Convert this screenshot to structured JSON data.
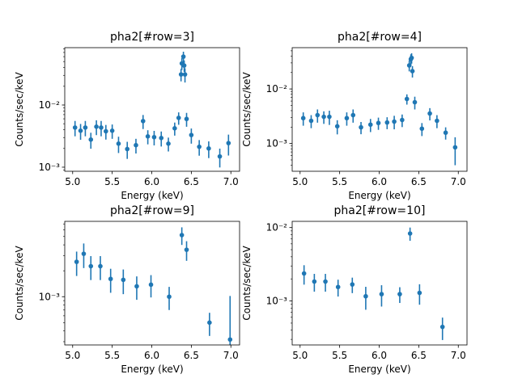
{
  "chart_data": [
    {
      "type": "scatter",
      "title": "pha2[#row=3]",
      "xlabel": "Energy (keV)",
      "ylabel": "Counts/sec/keV",
      "yscale": "log",
      "xlim": [
        4.9,
        7.11
      ],
      "ylim": [
        0.00086,
        0.0836
      ],
      "color": "#1f77b4",
      "xticks": [
        "5.0",
        "5.5",
        "6.0",
        "6.5",
        "7.0"
      ],
      "yticks": [
        {
          "value": 0.01,
          "label": "10⁻²"
        },
        {
          "value": 0.001,
          "label": "10⁻³"
        }
      ],
      "x": [
        5.03,
        5.1,
        5.16,
        5.23,
        5.3,
        5.36,
        5.42,
        5.5,
        5.58,
        5.69,
        5.8,
        5.89,
        5.95,
        6.03,
        6.12,
        6.21,
        6.29,
        6.34,
        6.37,
        6.38,
        6.4,
        6.41,
        6.42,
        6.44,
        6.5,
        6.6,
        6.72,
        6.86,
        6.97
      ],
      "y": [
        0.00434,
        0.00386,
        0.00434,
        0.00278,
        0.00448,
        0.00434,
        0.00378,
        0.00386,
        0.00239,
        0.00196,
        0.00226,
        0.00551,
        0.00313,
        0.00304,
        0.00295,
        0.00239,
        0.00422,
        0.00621,
        0.031,
        0.0466,
        0.06,
        0.0431,
        0.031,
        0.00597,
        0.00329,
        0.00213,
        0.002,
        0.00149,
        0.00244
      ],
      "yerr": [
        0.0012,
        0.0011,
        0.0012,
        0.0008,
        0.0012,
        0.0012,
        0.001,
        0.001,
        0.0007,
        0.0006,
        0.0006,
        0.0014,
        0.0008,
        0.0008,
        0.0008,
        0.0006,
        0.001,
        0.0014,
        0.007,
        0.01,
        0.012,
        0.009,
        0.008,
        0.0015,
        0.0009,
        0.0006,
        0.0006,
        0.0005,
        0.0009
      ]
    },
    {
      "type": "scatter",
      "title": "pha2[#row=4]",
      "xlabel": "Energy (keV)",
      "ylabel": "Counts/sec/keV",
      "yscale": "log",
      "xlim": [
        4.9,
        7.11
      ],
      "ylim": [
        0.00031,
        0.0571
      ],
      "color": "#1f77b4",
      "xticks": [
        "5.0",
        "5.5",
        "6.0",
        "6.5",
        "7.0"
      ],
      "yticks": [
        {
          "value": 0.01,
          "label": "10⁻²"
        },
        {
          "value": 0.001,
          "label": "10⁻³"
        }
      ],
      "x": [
        5.04,
        5.14,
        5.22,
        5.3,
        5.37,
        5.47,
        5.59,
        5.67,
        5.77,
        5.89,
        5.99,
        6.1,
        6.19,
        6.29,
        6.35,
        6.38,
        6.4,
        6.41,
        6.42,
        6.45,
        6.54,
        6.64,
        6.73,
        6.84,
        6.96
      ],
      "y": [
        0.00292,
        0.00261,
        0.00331,
        0.00309,
        0.00309,
        0.00207,
        0.00292,
        0.00331,
        0.00198,
        0.00222,
        0.00238,
        0.00243,
        0.00252,
        0.0027,
        0.00656,
        0.027,
        0.0351,
        0.0371,
        0.0212,
        0.00571,
        0.00187,
        0.00355,
        0.00261,
        0.00158,
        0.00085
      ],
      "yerr": [
        0.0008,
        0.0007,
        0.0009,
        0.0008,
        0.0009,
        0.0006,
        0.0008,
        0.0009,
        0.0005,
        0.0006,
        0.0006,
        0.0006,
        0.0007,
        0.0007,
        0.0014,
        0.006,
        0.008,
        0.008,
        0.005,
        0.0015,
        0.0005,
        0.0009,
        0.0007,
        0.0004,
        0.00045
      ]
    },
    {
      "type": "scatter",
      "title": "pha2[#row=9]",
      "xlabel": "Energy (keV)",
      "ylabel": "Counts/sec/keV",
      "yscale": "log",
      "xlim": [
        4.9,
        7.11
      ],
      "ylim": [
        0.000275,
        0.0075
      ],
      "color": "#1f77b4",
      "xticks": [
        "5.0",
        "5.5",
        "6.0",
        "6.5",
        "7.0"
      ],
      "yticks": [
        {
          "value": 0.001,
          "label": "10⁻³"
        }
      ],
      "x": [
        5.05,
        5.14,
        5.23,
        5.35,
        5.48,
        5.64,
        5.81,
        5.99,
        6.22,
        6.38,
        6.44,
        6.73,
        6.99
      ],
      "y": [
        0.00254,
        0.00315,
        0.00226,
        0.00226,
        0.00161,
        0.00157,
        0.00132,
        0.00138,
        0.001,
        0.00519,
        0.00351,
        0.0005,
        0.000318
      ],
      "yerr": [
        0.0008,
        0.001,
        0.0007,
        0.0007,
        0.0005,
        0.0005,
        0.0004,
        0.0004,
        0.0003,
        0.0012,
        0.0009,
        0.00015,
        0.0007
      ]
    },
    {
      "type": "scatter",
      "title": "pha2[#row=10]",
      "xlabel": "Energy (keV)",
      "ylabel": "Counts/sec/keV",
      "yscale": "log",
      "xlim": [
        4.9,
        7.11
      ],
      "ylim": [
        0.000252,
        0.01215
      ],
      "color": "#1f77b4",
      "xticks": [
        "5.0",
        "5.5",
        "6.0",
        "6.5",
        "7.0"
      ],
      "yticks": [
        {
          "value": 0.01,
          "label": "10⁻²"
        },
        {
          "value": 0.001,
          "label": "10⁻³"
        }
      ],
      "x": [
        5.05,
        5.18,
        5.32,
        5.48,
        5.66,
        5.83,
        6.03,
        6.26,
        6.39,
        6.51,
        6.8
      ],
      "y": [
        0.00237,
        0.00184,
        0.00184,
        0.00155,
        0.00168,
        0.00116,
        0.00124,
        0.00124,
        0.0083,
        0.00129,
        0.000444
      ],
      "yerr": [
        0.0007,
        0.0005,
        0.0005,
        0.0004,
        0.0004,
        0.0004,
        0.0004,
        0.0003,
        0.0017,
        0.0004,
        0.00015
      ]
    }
  ]
}
